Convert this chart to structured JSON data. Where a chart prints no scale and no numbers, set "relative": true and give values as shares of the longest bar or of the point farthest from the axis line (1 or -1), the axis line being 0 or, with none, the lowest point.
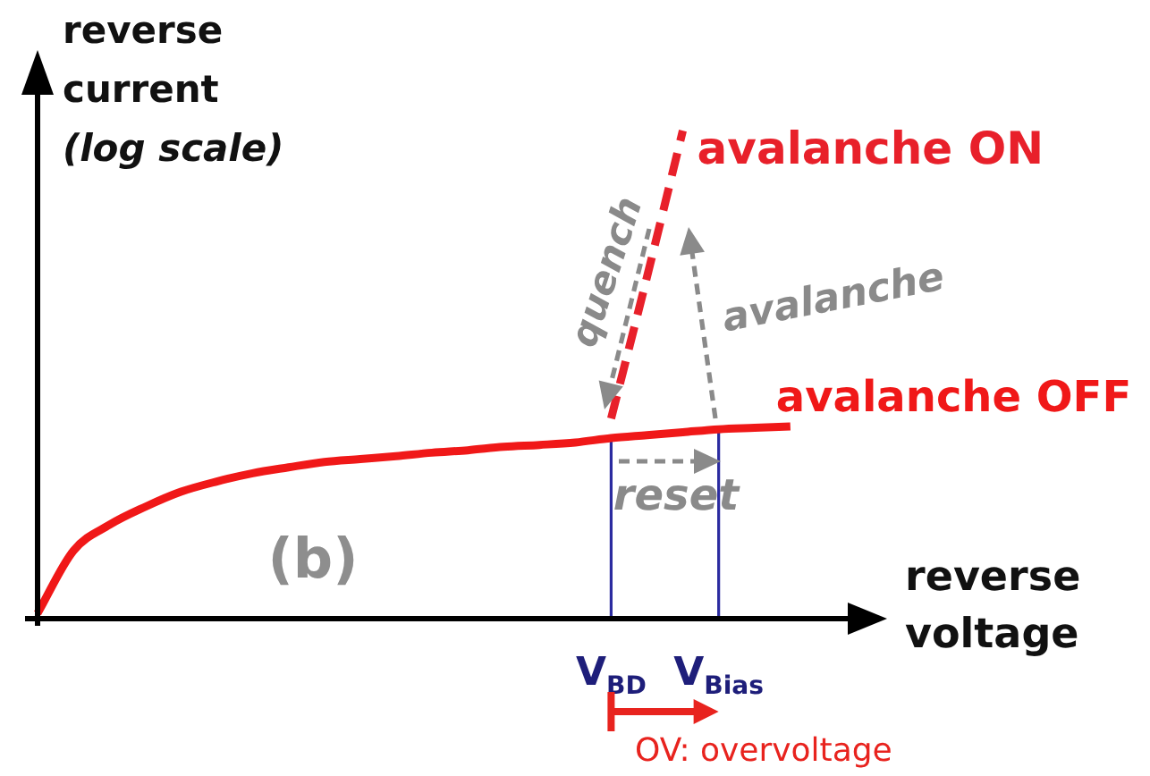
{
  "chart_data": {
    "type": "line",
    "relative": true,
    "xlabel": "reverse voltage",
    "ylabel": "reverse current (log scale)",
    "categories": [
      null,
      null,
      null,
      null,
      null,
      null,
      null,
      null,
      null,
      null,
      null,
      null,
      null,
      null,
      null,
      null,
      "V$_{BD}$",
      null,
      null,
      "V$_{Bias}$",
      null,
      null,
      null,
      null
    ],
    "series": [
      {
        "name": "avalanche OFF",
        "color": "#f01818",
        "line_style": "solid",
        "values": [
          0.011,
          0.139,
          0.192,
          0.229,
          0.26,
          0.281,
          0.298,
          0.31,
          0.321,
          0.327,
          0.333,
          0.34,
          0.345,
          0.352,
          0.356,
          0.361,
          0.37,
          0.376,
          0.382,
          0.388,
          0.391,
          0.394,
          null,
          null
        ]
      },
      {
        "name": "avalanche ON",
        "color": "#e8202a",
        "line_style": "dashed",
        "values": [
          null,
          null,
          null,
          null,
          null,
          null,
          null,
          null,
          null,
          null,
          null,
          null,
          null,
          null,
          null,
          null,
          0.41,
          0.7,
          1,
          null,
          null,
          null,
          null,
          null
        ]
      }
    ],
    "annotations": [
      "(b)",
      "quench",
      "avalanche",
      "reset",
      "OV: overvoltage"
    ],
    "marker": "none",
    "grid": "x",
    "legend": false,
    "tick_labels": "x"
  }
}
